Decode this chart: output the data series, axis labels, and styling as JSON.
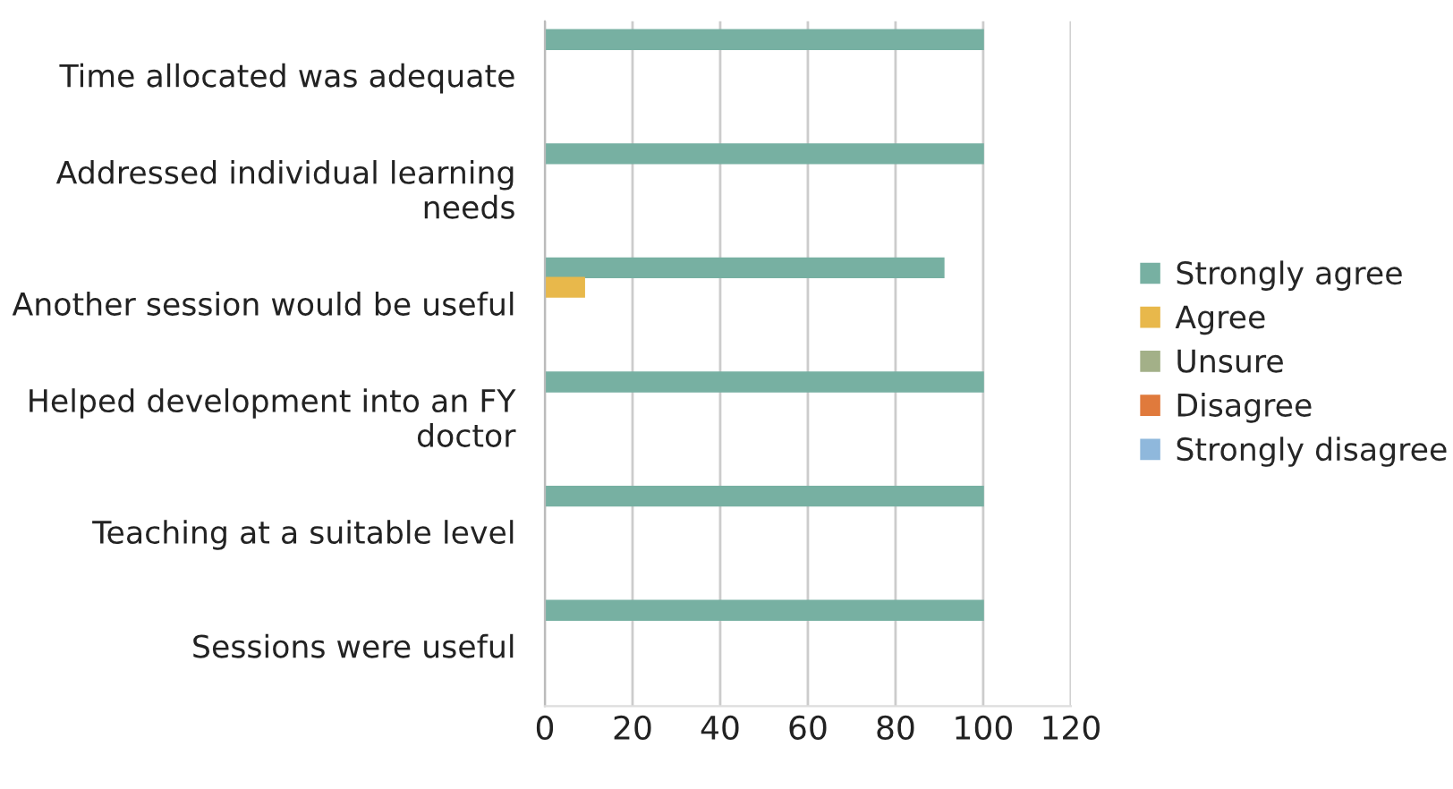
{
  "chart_data": {
    "type": "bar",
    "orientation": "horizontal",
    "categories": [
      "Time allocated was adequate",
      "Addressed individual learning needs",
      "Another session would be useful",
      "Helped development into an FY doctor",
      "Teaching at a suitable level",
      "Sessions were useful"
    ],
    "series": [
      {
        "name": "Strongly agree",
        "color": "#77b0a2",
        "values": [
          100,
          100,
          91,
          100,
          100,
          100
        ]
      },
      {
        "name": "Agree",
        "color": "#e8b84b",
        "values": [
          0,
          0,
          9,
          0,
          0,
          0
        ]
      },
      {
        "name": "Unsure",
        "color": "#a3b088",
        "values": [
          0,
          0,
          0,
          0,
          0,
          0
        ]
      },
      {
        "name": "Disagree",
        "color": "#e07a3c",
        "values": [
          0,
          0,
          0,
          0,
          0,
          0
        ]
      },
      {
        "name": "Strongly disagree",
        "color": "#8fb8dc",
        "values": [
          0,
          0,
          0,
          0,
          0,
          0
        ]
      }
    ],
    "xlim": [
      0,
      120
    ],
    "xticks": [
      0,
      20,
      40,
      60,
      80,
      100,
      120
    ],
    "grid": "x",
    "legend": "right"
  }
}
